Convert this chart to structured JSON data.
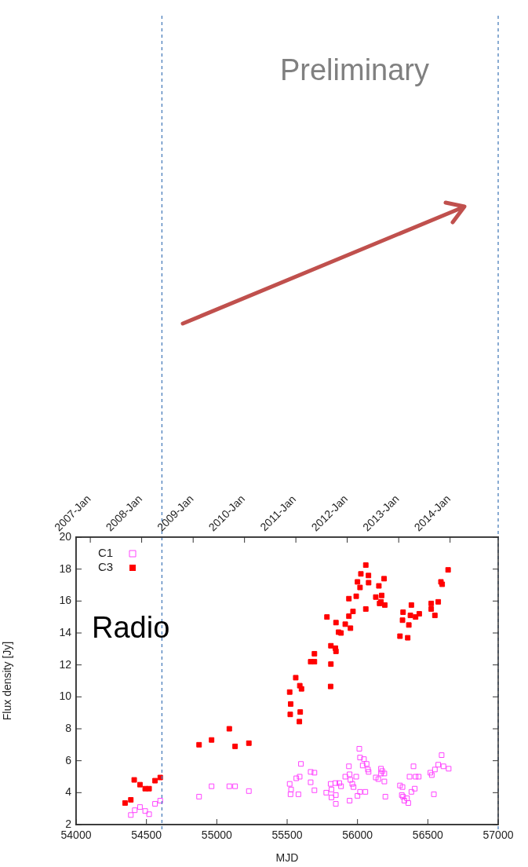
{
  "chart_data": {
    "type": "scatter",
    "xlabel": "MJD",
    "ylabel": "Flux density [Jy]",
    "annotations": [
      "Preliminary",
      "Radio"
    ],
    "xlim": [
      54000,
      57000
    ],
    "xticks": [
      54000,
      54500,
      55000,
      55500,
      56000,
      56500,
      57000
    ],
    "ylim": [
      2,
      20
    ],
    "yticks": [
      2,
      4,
      6,
      8,
      10,
      12,
      14,
      16,
      18,
      20
    ],
    "x2lim": [
      "2006-09-22",
      "2014-12-09"
    ],
    "x2ticks": [
      {
        "value": "2007-01-01",
        "label": "2007-Jan"
      },
      {
        "value": "2008-01-01",
        "label": "2008-Jan"
      },
      {
        "value": "2009-01-01",
        "label": "2009-Jan"
      },
      {
        "value": "2010-01-01",
        "label": "2010-Jan"
      },
      {
        "value": "2011-01-01",
        "label": "2011-Jan"
      },
      {
        "value": "2012-01-01",
        "label": "2012-Jan"
      },
      {
        "value": "2013-01-01",
        "label": "2013-Jan"
      },
      {
        "value": "2014-01-01",
        "label": "2014-Jan"
      }
    ],
    "ref_lines": [
      {
        "axis": "x",
        "value": 54610,
        "color": "#4a7ebb",
        "line_style": "dashed"
      },
      {
        "axis": "x",
        "value": 57000,
        "color": "#4a7ebb",
        "line_style": "dashed"
      }
    ],
    "grid": false,
    "legend": "top left",
    "marker": "square",
    "series": [
      {
        "name": "C1",
        "color": "#ff44ff",
        "x": [
          54389,
          54417,
          54454,
          54491,
          54519,
          54561,
          54598,
          54874,
          54963,
          55089,
          55130,
          55228,
          55518,
          55528,
          55524,
          55580,
          55565,
          55589,
          55598,
          55667,
          55694,
          55667,
          55694,
          55778,
          55809,
          55815,
          55815,
          55846,
          55846,
          55843,
          55871,
          55883,
          55913,
          55939,
          55944,
          55950,
          55963,
          55972,
          55991,
          55944,
          56000,
          56018,
          56056,
          56013,
          56018,
          56046,
          56037,
          56065,
          56074,
          56079,
          56130,
          56148,
          56167,
          56176,
          56167,
          56191,
          56191,
          56198,
          56302,
          56320,
          56315,
          56324,
          56333,
          56352,
          56361,
          56370,
          56383,
          56398,
          56407,
          56413,
          56435,
          56518,
          56528,
          56543,
          56550,
          56574,
          56598,
          56611,
          56648
        ],
        "values": [
          2.6,
          2.9,
          3.1,
          2.85,
          2.65,
          3.3,
          3.5,
          3.75,
          4.4,
          4.4,
          4.4,
          4.1,
          4.55,
          4.2,
          3.9,
          3.9,
          4.9,
          5.0,
          5.8,
          5.3,
          5.25,
          4.65,
          4.15,
          4.0,
          4.55,
          4.2,
          3.7,
          3.85,
          3.3,
          4.6,
          4.6,
          4.4,
          5.0,
          5.65,
          5.15,
          4.8,
          4.55,
          4.35,
          5.0,
          3.5,
          3.8,
          4.05,
          4.05,
          6.75,
          6.2,
          6.1,
          5.7,
          5.8,
          5.45,
          5.3,
          4.95,
          4.85,
          5.5,
          5.35,
          5.2,
          5.2,
          4.7,
          3.75,
          4.45,
          4.35,
          3.85,
          3.75,
          3.5,
          3.65,
          3.35,
          5.0,
          4.05,
          5.65,
          4.25,
          5.0,
          5.0,
          5.25,
          5.1,
          3.9,
          5.45,
          5.75,
          6.35,
          5.65,
          5.5
        ]
      },
      {
        "name": "C3",
        "color": "#ff0000",
        "x": [
          54348,
          54389,
          54413,
          54454,
          54491,
          54519,
          54561,
          54598,
          54874,
          54963,
          55089,
          55130,
          55228,
          55518,
          55525,
          55522,
          55561,
          55590,
          55602,
          55593,
          55587,
          55667,
          55694,
          55694,
          55783,
          55811,
          55843,
          55847,
          55811,
          55809,
          55847,
          55865,
          55883,
          55913,
          55939,
          55950,
          55968,
          55939,
          55991,
          56000,
          56018,
          56024,
          56059,
          56078,
          56079,
          56059,
          56152,
          56189,
          56130,
          56172,
          56167,
          56194,
          56157,
          56302,
          56357,
          56324,
          56320,
          56365,
          56383,
          56376,
          56413,
          56439,
          56524,
          56524,
          56550,
          56574,
          56593,
          56602,
          56644
        ],
        "values": [
          3.35,
          3.55,
          4.8,
          4.5,
          4.25,
          4.25,
          4.75,
          4.95,
          7.0,
          7.3,
          8.0,
          6.9,
          7.1,
          10.3,
          9.55,
          8.9,
          11.2,
          10.7,
          10.5,
          9.05,
          8.45,
          12.2,
          12.2,
          12.7,
          15.0,
          13.2,
          13.05,
          12.85,
          12.05,
          10.65,
          14.65,
          14.05,
          14.0,
          14.55,
          15.05,
          14.3,
          15.35,
          16.15,
          16.3,
          17.2,
          16.85,
          17.7,
          18.25,
          17.6,
          17.15,
          15.5,
          16.95,
          17.4,
          16.25,
          16.35,
          15.95,
          15.75,
          15.85,
          13.8,
          13.7,
          15.3,
          14.8,
          14.5,
          15.75,
          15.1,
          15.0,
          15.2,
          15.85,
          15.5,
          15.1,
          15.95,
          17.2,
          17.05,
          17.95
        ]
      }
    ]
  }
}
